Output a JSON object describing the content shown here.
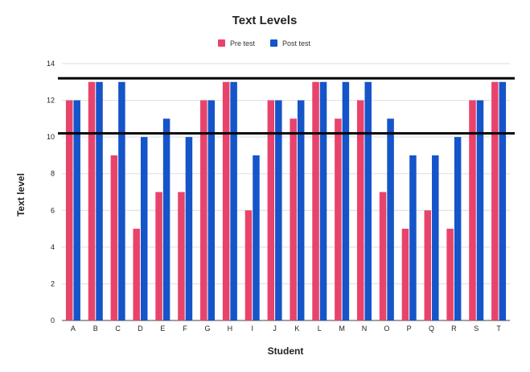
{
  "colors": {
    "pre": "#e8436b",
    "post": "#1554c9",
    "grid": "#dddddd",
    "ref_line": "#000000"
  },
  "chart_data": {
    "type": "bar",
    "title": "Text Levels",
    "xlabel": "Student",
    "ylabel": "Text level",
    "ylim": [
      0,
      14
    ],
    "yticks": [
      0,
      2,
      4,
      6,
      8,
      10,
      12,
      14
    ],
    "grid": true,
    "legend_position": "top-center",
    "categories": [
      "A",
      "B",
      "C",
      "D",
      "E",
      "F",
      "G",
      "H",
      "I",
      "J",
      "K",
      "L",
      "M",
      "N",
      "O",
      "P",
      "Q",
      "R",
      "S",
      "T"
    ],
    "series": [
      {
        "name": "Pre test",
        "values": [
          12,
          13,
          9,
          5,
          7,
          7,
          12,
          13,
          6,
          12,
          11,
          13,
          11,
          12,
          7,
          5,
          6,
          5,
          12,
          13
        ]
      },
      {
        "name": "Post test",
        "values": [
          12,
          13,
          13,
          10,
          11,
          10,
          12,
          13,
          9,
          12,
          12,
          13,
          13,
          13,
          11,
          9,
          9,
          10,
          12,
          13
        ]
      }
    ],
    "reference_lines": [
      13.2,
      10.2
    ]
  }
}
